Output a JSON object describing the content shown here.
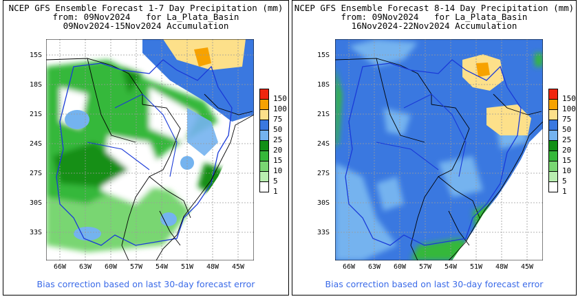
{
  "panels": [
    {
      "id": "week1",
      "title_line1": "NCEP GFS Ensemble Forecast 1-7 Day Precipitation (mm)",
      "title_line2": "from: 09Nov2024   for La_Plata_Basin",
      "title_line3": "09Nov2024-15Nov2024 Accumulation",
      "footer": "Bias correction based on last 30-day forecast error"
    },
    {
      "id": "week2",
      "title_line1": "NCEP GFS Ensemble Forecast 8-14 Day Precipitation (mm)",
      "title_line2": "from: 09Nov2024   for La_Plata_Basin",
      "title_line3": "16Nov2024-22Nov2024 Accumulation",
      "footer": "Bias correction based on last 30-day forecast error"
    }
  ],
  "lat_labels": [
    "15S",
    "18S",
    "21S",
    "24S",
    "27S",
    "30S",
    "33S"
  ],
  "lon_labels": [
    "66W",
    "63W",
    "60W",
    "57W",
    "54W",
    "51W",
    "48W",
    "45W"
  ],
  "legend": {
    "labels": [
      "150",
      "100",
      "75",
      "50",
      "25",
      "20",
      "15",
      "10",
      "5",
      "1"
    ],
    "colors": [
      "#f0260e",
      "#f7a200",
      "#fde08a",
      "#3a78e0",
      "#74b3ef",
      "#128f17",
      "#36b83a",
      "#79d672",
      "#b9eeb0",
      "#ffffff"
    ]
  },
  "colors": {
    "footer_text": "#3a6ae8",
    "basin_outline": "#1a3ad8"
  }
}
